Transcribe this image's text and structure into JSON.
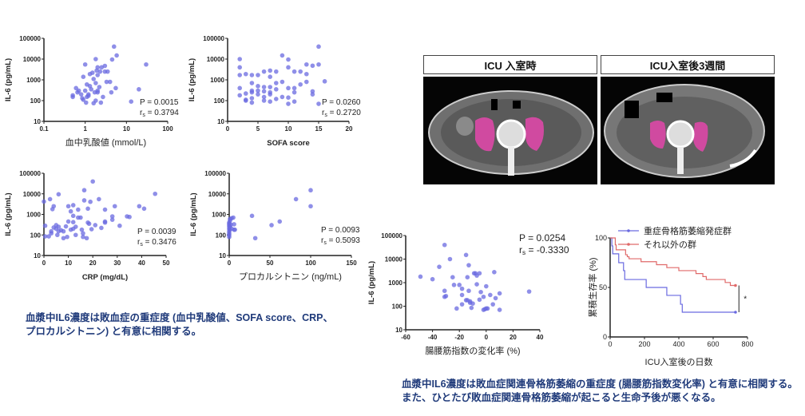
{
  "colors": {
    "points": "#6a6ae0",
    "group_severe": "#6a6ae0",
    "group_other": "#e06a6a",
    "caption": "#1f3a7a",
    "muscle_highlight": "#d04aa0"
  },
  "ct_panels": [
    {
      "title": "ICU 入室時"
    },
    {
      "title": "ICU入室後3週間"
    }
  ],
  "captions": {
    "left": [
      "血漿中IL6濃度は敗血症の重症度 (血中乳酸値、SOFA score、CRP、",
      "プロカルシトニン) と有意に相関する。"
    ],
    "right": [
      "血漿中IL6濃度は敗血症関連骨格筋萎縮の重症度 (腸腰筋指数変化率) と有意に相関する。",
      "また、ひとたび敗血症関連骨格筋萎縮が起こると生命予後が悪くなる。"
    ]
  },
  "chart_data": [
    {
      "type": "scatter",
      "xlabel": "血中乳酸値 (mmol/L)",
      "ylabel": "IL-6 (pg/mL)",
      "xscale": "log",
      "xlim": [
        0.1,
        100
      ],
      "xticks": [
        "0.1",
        "1",
        "10",
        "100"
      ],
      "yscale": "log",
      "ylim": [
        10,
        100000
      ],
      "yticks": [
        "10",
        "100",
        "1000",
        "10000",
        "100000"
      ],
      "stats": {
        "p": "P = 0.0015",
        "rs": "0.3794"
      },
      "points": [
        [
          0.5,
          150
        ],
        [
          0.5,
          180
        ],
        [
          0.6,
          400
        ],
        [
          0.65,
          250
        ],
        [
          0.7,
          300
        ],
        [
          0.8,
          200
        ],
        [
          0.85,
          130
        ],
        [
          0.9,
          1400
        ],
        [
          0.9,
          110
        ],
        [
          1,
          5500
        ],
        [
          1,
          300
        ],
        [
          1.05,
          80
        ],
        [
          1.1,
          600
        ],
        [
          1.1,
          150
        ],
        [
          1.2,
          200
        ],
        [
          1.2,
          170
        ],
        [
          1.3,
          500
        ],
        [
          1.3,
          1900
        ],
        [
          1.4,
          350
        ],
        [
          1.5,
          2200
        ],
        [
          1.6,
          75
        ],
        [
          1.6,
          1100
        ],
        [
          1.7,
          250
        ],
        [
          1.8,
          10000
        ],
        [
          1.8,
          700
        ],
        [
          1.8,
          100
        ],
        [
          1.9,
          2800
        ],
        [
          2,
          250
        ],
        [
          2,
          1700
        ],
        [
          2,
          300
        ],
        [
          2,
          4000
        ],
        [
          2.2,
          450
        ],
        [
          2.3,
          2500
        ],
        [
          2.4,
          80
        ],
        [
          2.5,
          4000
        ],
        [
          2.7,
          150
        ],
        [
          3,
          4700
        ],
        [
          3,
          2500
        ],
        [
          3.3,
          800
        ],
        [
          3.5,
          2500
        ],
        [
          4,
          800
        ],
        [
          4.3,
          250
        ],
        [
          4.5,
          9500
        ],
        [
          5,
          40000
        ],
        [
          5.5,
          400
        ],
        [
          5.8,
          15000
        ],
        [
          13,
          90
        ],
        [
          20,
          350
        ],
        [
          30,
          5500
        ]
      ]
    },
    {
      "type": "scatter",
      "xlabel": "SOFA score",
      "ylabel": "IL-6 (pg/mL)",
      "xscale": "linear",
      "xlim": [
        0,
        20
      ],
      "xticks": [
        "0",
        "5",
        "10",
        "15",
        "20"
      ],
      "yscale": "log",
      "ylim": [
        10,
        100000
      ],
      "yticks": [
        "10",
        "100",
        "1000",
        "10000",
        "100000"
      ],
      "stats": {
        "p": "P = 0.0260",
        "rs": "0.2720"
      },
      "points": [
        [
          2,
          10000
        ],
        [
          2,
          4000
        ],
        [
          2,
          1700
        ],
        [
          2,
          400
        ],
        [
          2,
          180
        ],
        [
          3,
          1900
        ],
        [
          3,
          220
        ],
        [
          3,
          110
        ],
        [
          3,
          100
        ],
        [
          4,
          1700
        ],
        [
          4,
          700
        ],
        [
          4,
          300
        ],
        [
          4,
          250
        ],
        [
          4,
          130
        ],
        [
          4,
          80
        ],
        [
          5,
          1700
        ],
        [
          5,
          500
        ],
        [
          5,
          300
        ],
        [
          5,
          200
        ],
        [
          6,
          2500
        ],
        [
          6,
          450
        ],
        [
          6,
          280
        ],
        [
          6,
          150
        ],
        [
          6,
          100
        ],
        [
          7,
          2800
        ],
        [
          7,
          1400
        ],
        [
          7,
          450
        ],
        [
          7,
          250
        ],
        [
          7,
          200
        ],
        [
          7,
          90
        ],
        [
          8,
          2500
        ],
        [
          8,
          700
        ],
        [
          8,
          350
        ],
        [
          8,
          120
        ],
        [
          9,
          15000
        ],
        [
          9,
          800
        ],
        [
          9,
          150
        ],
        [
          10,
          9500
        ],
        [
          10,
          4000
        ],
        [
          10,
          400
        ],
        [
          10,
          140
        ],
        [
          10,
          70
        ],
        [
          11,
          2500
        ],
        [
          11,
          400
        ],
        [
          11,
          250
        ],
        [
          11,
          90
        ],
        [
          12,
          2500
        ],
        [
          12,
          600
        ],
        [
          13,
          5500
        ],
        [
          13,
          1900
        ],
        [
          13,
          800
        ],
        [
          14,
          4800
        ],
        [
          14,
          280
        ],
        [
          14,
          200
        ],
        [
          15,
          40000
        ],
        [
          15,
          5500
        ],
        [
          15,
          70
        ],
        [
          16,
          850
        ]
      ]
    },
    {
      "type": "scatter",
      "xlabel": "CRP (mg/dL)",
      "ylabel": "IL-6 (pg/mL)",
      "xscale": "linear",
      "xlim": [
        0,
        50
      ],
      "xticks": [
        "0",
        "10",
        "20",
        "30",
        "40",
        "50"
      ],
      "yscale": "log",
      "ylim": [
        10,
        100000
      ],
      "yticks": [
        "10",
        "100",
        "1000",
        "10000",
        "100000"
      ],
      "stats": {
        "p": "P = 0.0039",
        "rs": "0.3476"
      },
      "points": [
        [
          0,
          4200
        ],
        [
          0.5,
          280
        ],
        [
          0.5,
          85
        ],
        [
          2,
          85
        ],
        [
          2.5,
          5500
        ],
        [
          3,
          120
        ],
        [
          3,
          150
        ],
        [
          3.5,
          1800
        ],
        [
          4,
          2500
        ],
        [
          4,
          230
        ],
        [
          5,
          300
        ],
        [
          5,
          200
        ],
        [
          5.5,
          100
        ],
        [
          6,
          9500
        ],
        [
          6,
          250
        ],
        [
          6,
          150
        ],
        [
          7,
          170
        ],
        [
          8,
          70
        ],
        [
          8,
          150
        ],
        [
          9,
          260
        ],
        [
          9.5,
          80
        ],
        [
          10,
          2500
        ],
        [
          10,
          450
        ],
        [
          11,
          1400
        ],
        [
          11,
          180
        ],
        [
          12,
          2800
        ],
        [
          12,
          850
        ],
        [
          12,
          420
        ],
        [
          12,
          200
        ],
        [
          13,
          250
        ],
        [
          13,
          100
        ],
        [
          14,
          1700
        ],
        [
          14,
          700
        ],
        [
          15,
          700
        ],
        [
          15.5,
          180
        ],
        [
          16,
          120
        ],
        [
          16,
          80
        ],
        [
          16.5,
          15000
        ],
        [
          16.5,
          4800
        ],
        [
          17.5,
          70
        ],
        [
          18,
          1900
        ],
        [
          18,
          400
        ],
        [
          18.5,
          350
        ],
        [
          19,
          4100
        ],
        [
          19.5,
          190
        ],
        [
          20,
          40000
        ],
        [
          21,
          300
        ],
        [
          22.5,
          5500
        ],
        [
          23.5,
          220
        ],
        [
          25,
          1700
        ],
        [
          25,
          450
        ],
        [
          25,
          400
        ],
        [
          28,
          800
        ],
        [
          28,
          550
        ],
        [
          29,
          2500
        ],
        [
          31,
          280
        ],
        [
          34,
          800
        ],
        [
          35,
          750
        ],
        [
          39,
          2500
        ],
        [
          41,
          1900
        ],
        [
          45.5,
          10000
        ]
      ]
    },
    {
      "type": "scatter",
      "xlabel": "プロカルシトニン (ng/mL)",
      "ylabel": "IL-6 (pg/mL)",
      "xscale": "linear",
      "xlim": [
        0,
        150
      ],
      "xticks": [
        "0",
        "50",
        "100",
        "150"
      ],
      "yscale": "log",
      "ylim": [
        10,
        100000
      ],
      "yticks": [
        "10",
        "100",
        "1000",
        "10000",
        "100000"
      ],
      "stats": {
        "p": "P = 0.0093",
        "rs": "0.5093"
      },
      "points": [
        [
          0,
          80
        ],
        [
          0,
          100
        ],
        [
          0,
          120
        ],
        [
          0,
          150
        ],
        [
          0,
          200
        ],
        [
          0,
          250
        ],
        [
          0,
          300
        ],
        [
          0,
          350
        ],
        [
          0,
          400
        ],
        [
          0.5,
          180
        ],
        [
          1,
          250
        ],
        [
          1,
          500
        ],
        [
          1,
          600
        ],
        [
          2,
          320
        ],
        [
          3,
          200
        ],
        [
          3,
          650
        ],
        [
          5,
          700
        ],
        [
          6,
          180
        ],
        [
          6,
          330
        ],
        [
          7,
          180
        ],
        [
          28,
          850
        ],
        [
          32,
          70
        ],
        [
          52,
          300
        ],
        [
          62,
          450
        ],
        [
          82,
          5500
        ],
        [
          100,
          15000
        ],
        [
          100,
          2500
        ]
      ]
    },
    {
      "type": "scatter",
      "xlabel": "腸腰筋指数の変化率 (%)",
      "ylabel": "IL-6 (pg/mL)",
      "xscale": "linear",
      "xlim": [
        -60,
        40
      ],
      "xticks": [
        "-60",
        "-40",
        "-20",
        "0",
        "20",
        "40"
      ],
      "yscale": "log",
      "ylim": [
        10,
        100000
      ],
      "yticks": [
        "10",
        "100",
        "1000",
        "10000",
        "100000"
      ],
      "stats": {
        "p": "P = 0.0254",
        "rs": "-0.3330"
      },
      "points": [
        [
          -49,
          1800
        ],
        [
          -40,
          1400
        ],
        [
          -35,
          4700
        ],
        [
          -31,
          40000
        ],
        [
          -31,
          450
        ],
        [
          -31,
          250
        ],
        [
          -30,
          270
        ],
        [
          -27,
          10000
        ],
        [
          -25,
          1700
        ],
        [
          -24,
          800
        ],
        [
          -22,
          80
        ],
        [
          -20,
          800
        ],
        [
          -18,
          550
        ],
        [
          -18,
          300
        ],
        [
          -18,
          120
        ],
        [
          -15,
          15000
        ],
        [
          -15,
          180
        ],
        [
          -14,
          1700
        ],
        [
          -14,
          180
        ],
        [
          -13,
          5500
        ],
        [
          -13,
          450
        ],
        [
          -12,
          160
        ],
        [
          -12,
          140
        ],
        [
          -11,
          85
        ],
        [
          -10,
          130
        ],
        [
          -9,
          2500
        ],
        [
          -8,
          2500
        ],
        [
          -7,
          2000
        ],
        [
          -7,
          850
        ],
        [
          -5,
          2500
        ],
        [
          -5,
          190
        ],
        [
          -4,
          400
        ],
        [
          -2,
          250
        ],
        [
          -2,
          70
        ],
        [
          -1,
          75
        ],
        [
          0,
          700
        ],
        [
          0,
          80
        ],
        [
          1,
          80
        ],
        [
          3,
          300
        ],
        [
          5,
          120
        ],
        [
          6,
          2800
        ],
        [
          7,
          220
        ],
        [
          10,
          350
        ],
        [
          10,
          70
        ],
        [
          32,
          420
        ]
      ]
    },
    {
      "type": "line",
      "subtype": "kaplan-meier",
      "xlabel": "ICU入室後の日数",
      "ylabel": "累積生存率 (%)",
      "xscale": "linear",
      "xlim": [
        0,
        800
      ],
      "xticks": [
        "0",
        "200",
        "400",
        "600",
        "800"
      ],
      "yscale": "linear",
      "ylim": [
        0,
        100
      ],
      "yticks": [
        "0",
        "50",
        "100"
      ],
      "legend": "top-right",
      "significance": "*",
      "series": [
        {
          "name": "重症骨格筋萎縮発症群",
          "color": "#6a6ae0",
          "steps": [
            [
              0,
              100
            ],
            [
              10,
              92
            ],
            [
              15,
              84
            ],
            [
              50,
              75
            ],
            [
              78,
              67
            ],
            [
              85,
              58
            ],
            [
              210,
              50
            ],
            [
              330,
              42
            ],
            [
              410,
              33
            ],
            [
              420,
              25
            ],
            [
              730,
              25
            ]
          ]
        },
        {
          "name": "それ以外の群",
          "color": "#e06a6a",
          "steps": [
            [
              0,
              100
            ],
            [
              30,
              93
            ],
            [
              35,
              88
            ],
            [
              90,
              83
            ],
            [
              100,
              81
            ],
            [
              110,
              79
            ],
            [
              180,
              76
            ],
            [
              270,
              73
            ],
            [
              330,
              70
            ],
            [
              400,
              67
            ],
            [
              500,
              64
            ],
            [
              540,
              61
            ],
            [
              560,
              58
            ],
            [
              670,
              55
            ],
            [
              700,
              52
            ],
            [
              730,
              52
            ]
          ]
        }
      ]
    }
  ]
}
